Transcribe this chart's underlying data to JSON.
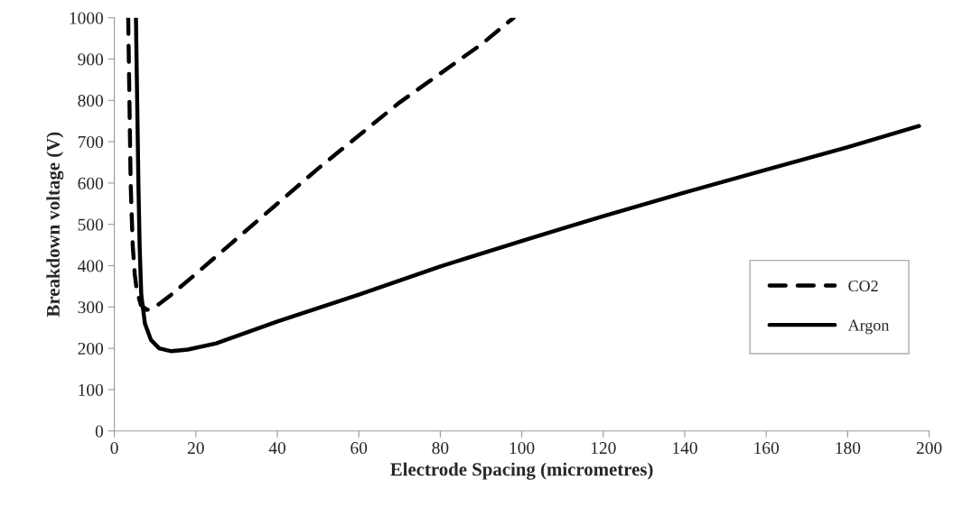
{
  "chart_data": {
    "type": "line",
    "xlabel": "Electrode Spacing (micrometres)",
    "ylabel": "Breakdown voltage (V)",
    "xlim": [
      0,
      200
    ],
    "xticks": [
      0,
      20,
      40,
      60,
      80,
      100,
      120,
      140,
      160,
      180,
      200
    ],
    "ylim": [
      0,
      1000
    ],
    "yticks": [
      0,
      100,
      200,
      300,
      400,
      500,
      600,
      700,
      800,
      900,
      1000
    ],
    "grid": false,
    "legend": "right",
    "marker": "none",
    "series": [
      {
        "name": "CO2",
        "color": "#000000",
        "line_style": "dashed",
        "x": [
          3.4,
          3.7,
          4.0,
          4.5,
          5,
          5.5,
          6.5,
          8,
          10,
          14,
          20,
          30,
          40,
          50,
          60,
          70,
          80,
          90,
          98
        ],
        "values": [
          1000,
          800,
          600,
          450,
          380,
          340,
          305,
          293,
          300,
          330,
          380,
          465,
          550,
          635,
          715,
          795,
          865,
          935,
          1000
        ]
      },
      {
        "name": "Argon",
        "color": "#000000",
        "line_style": "solid",
        "x": [
          5.3,
          5.6,
          5.9,
          6.2,
          6.6,
          7.5,
          9,
          11,
          14,
          18,
          25,
          40,
          60,
          80,
          100,
          120,
          140,
          160,
          180,
          197.5
        ],
        "values": [
          1000,
          800,
          600,
          450,
          330,
          260,
          220,
          200,
          193,
          197,
          212,
          265,
          330,
          398,
          460,
          520,
          577,
          632,
          687,
          738
        ]
      }
    ]
  }
}
